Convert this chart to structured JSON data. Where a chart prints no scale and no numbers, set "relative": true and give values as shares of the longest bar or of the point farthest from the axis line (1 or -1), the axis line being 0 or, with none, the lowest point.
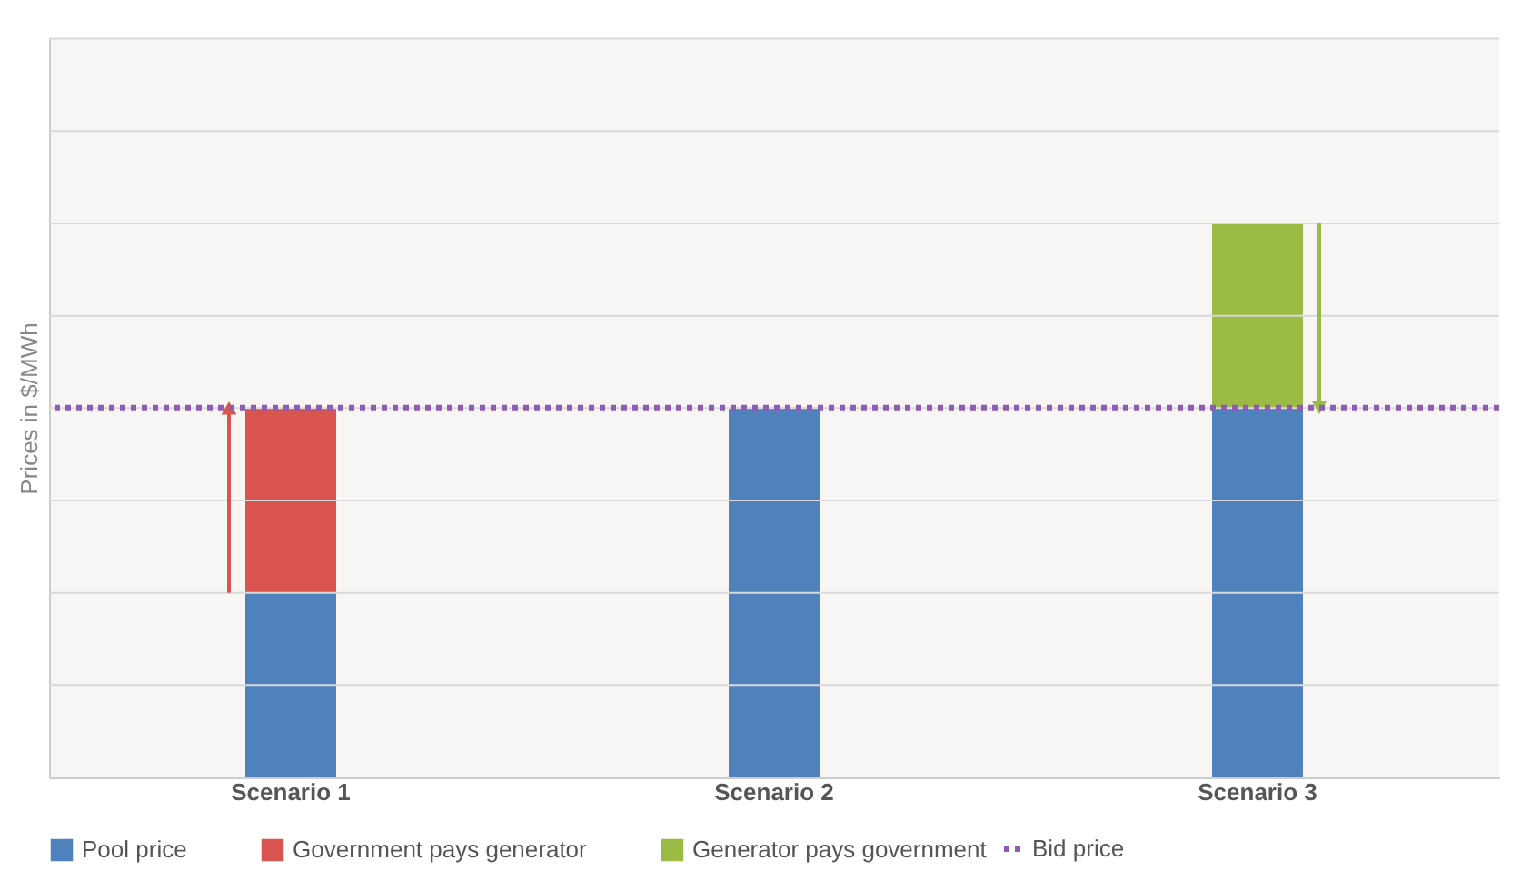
{
  "chart_data": {
    "type": "bar",
    "stacked": true,
    "relative": true,
    "ylabel": "Prices in $/MWh",
    "categories": [
      "Scenario 1",
      "Scenario 2",
      "Scenario 3"
    ],
    "series": [
      {
        "name": "Pool price",
        "color": "#4f81bd",
        "values": [
          0.333,
          0.667,
          0.667
        ]
      },
      {
        "name": "Government pays generator",
        "color": "#d9534f",
        "values": [
          0.333,
          null,
          null
        ]
      },
      {
        "name": "Generator pays government",
        "color": "#9bbb45",
        "values": [
          null,
          null,
          0.333
        ]
      }
    ],
    "ref_lines": [
      {
        "axis": "y",
        "value": 0.667,
        "label": "Bid price",
        "color": "#8e5bb5",
        "line_style": "dotted"
      }
    ],
    "grid": "y",
    "legend": "bottom"
  }
}
